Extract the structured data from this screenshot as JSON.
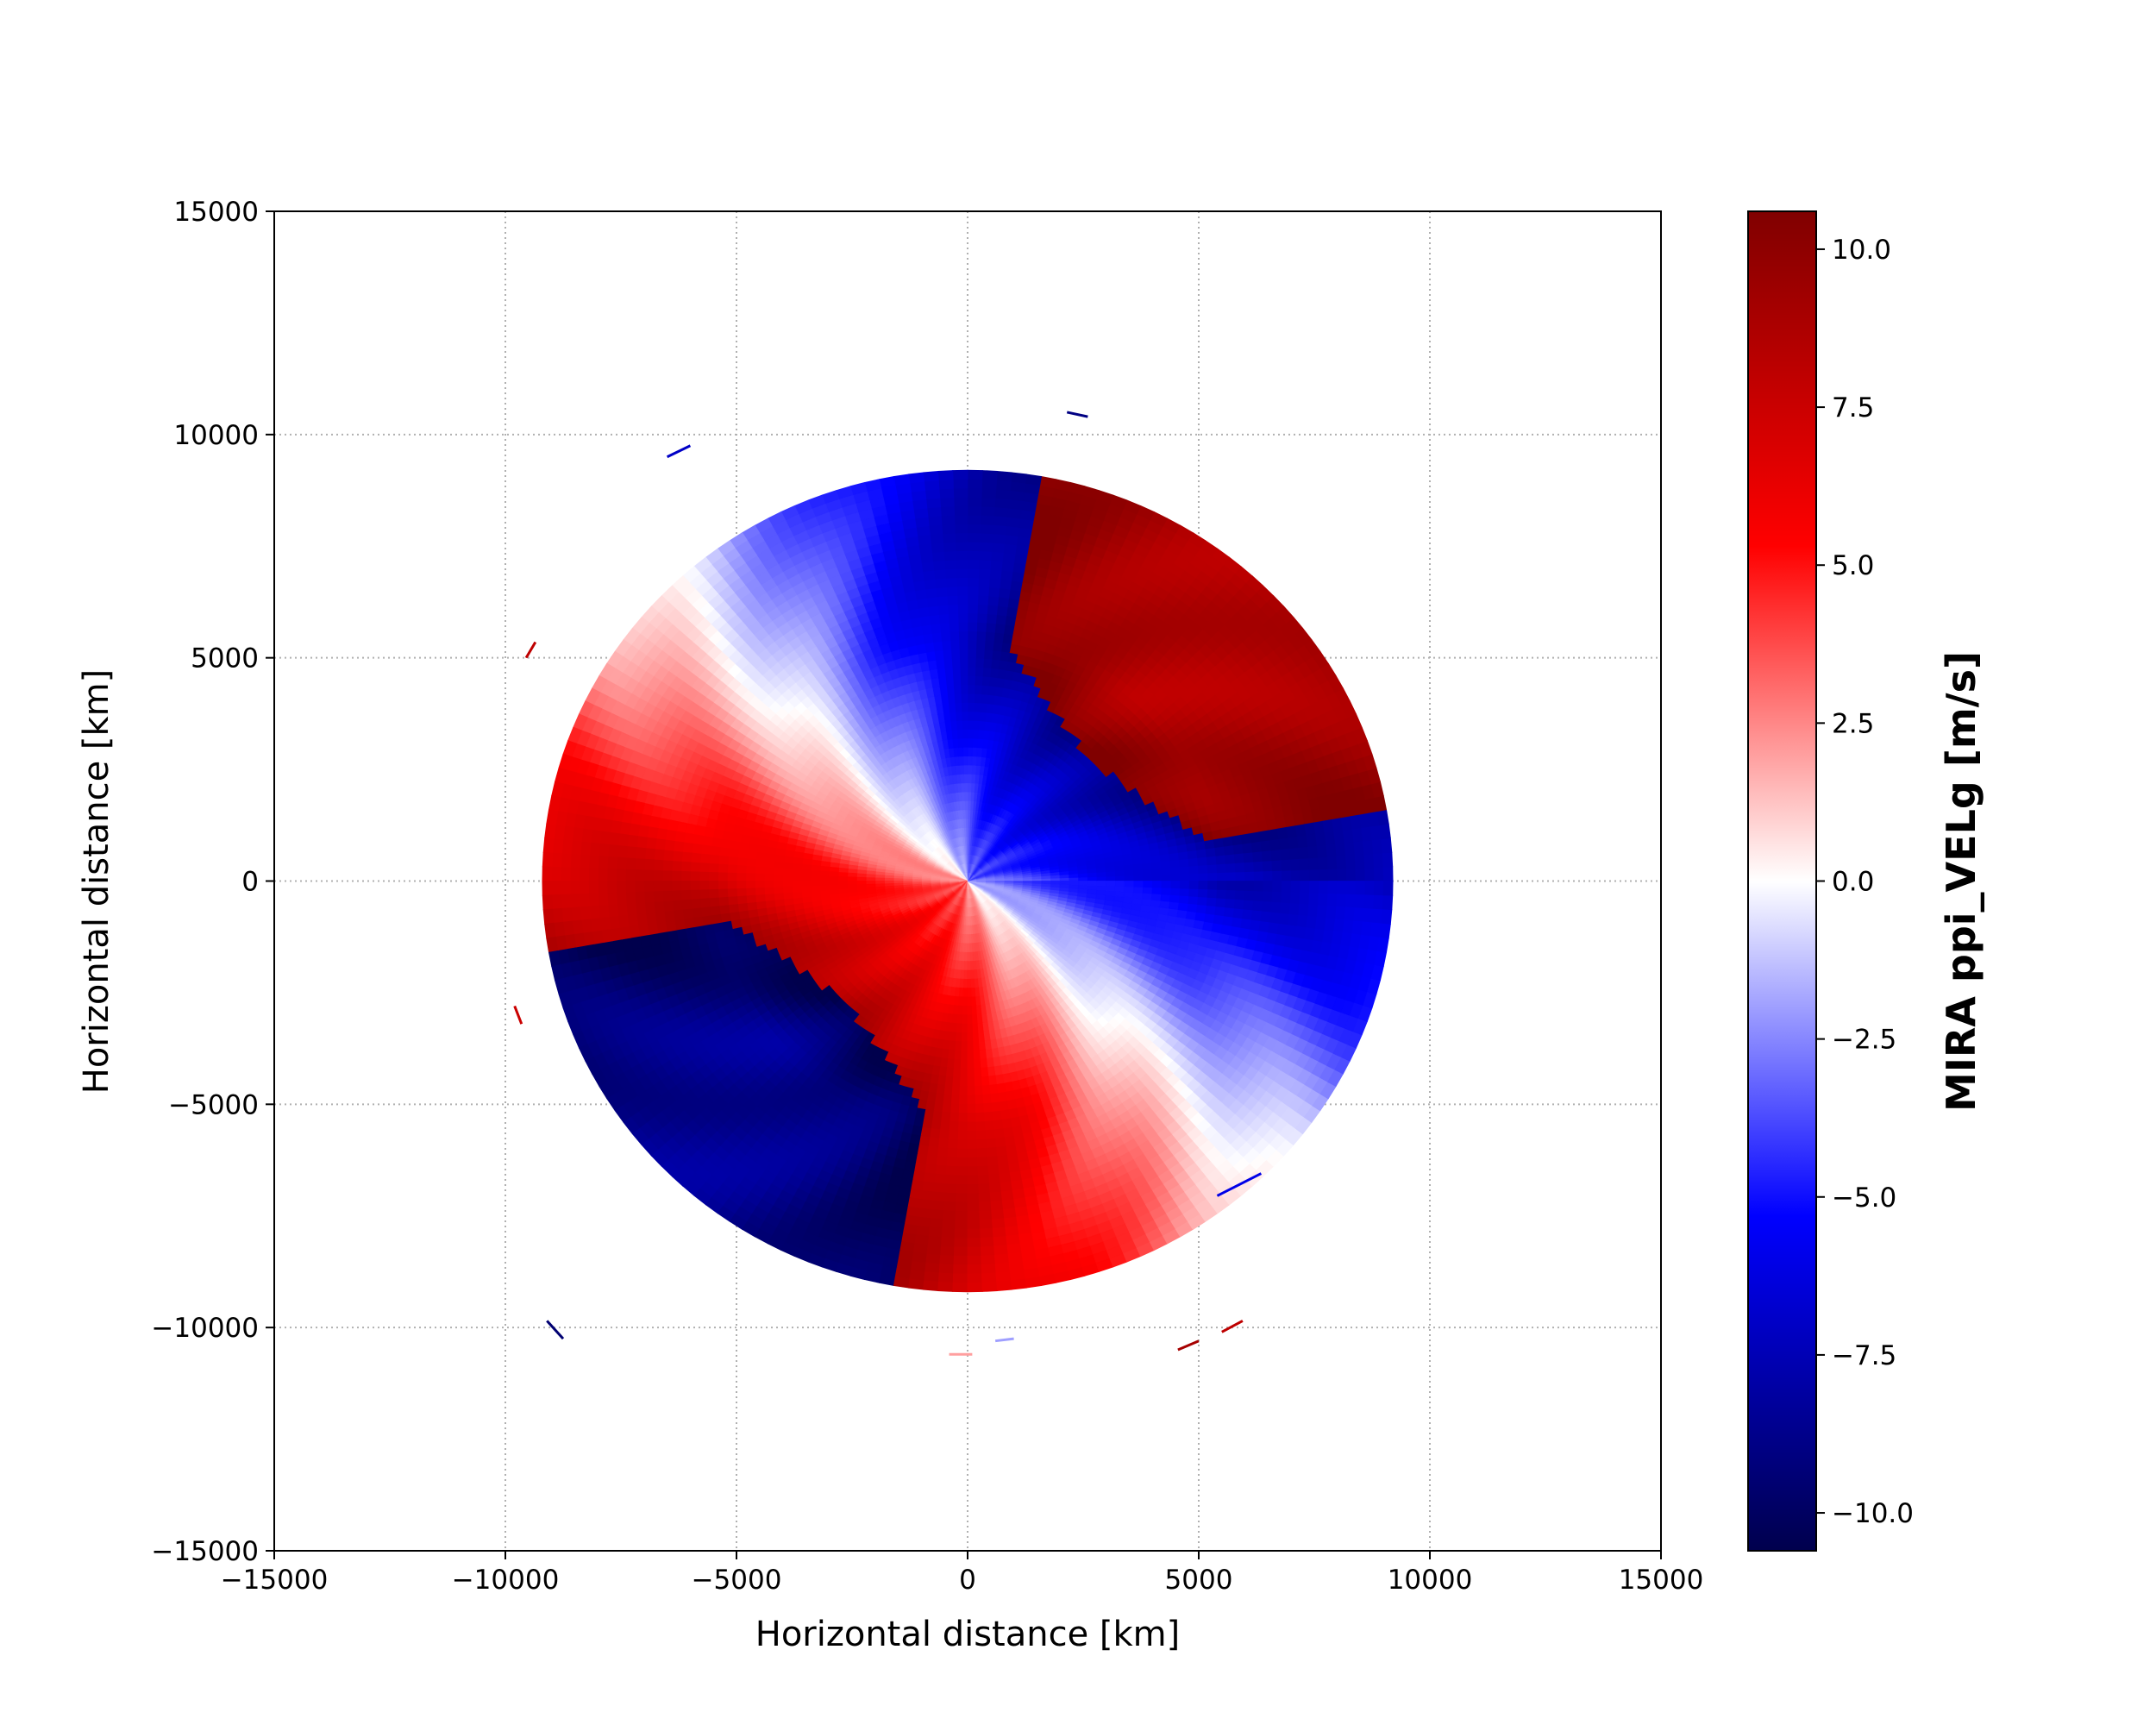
{
  "chart_data": {
    "type": "heatmap",
    "subtype": "radar-ppi",
    "xlabel": "Horizontal distance [km]",
    "ylabel": "Horizontal distance [km]",
    "xlim": [
      -15000,
      15000
    ],
    "ylim": [
      -15000,
      15000
    ],
    "xticks": [
      -15000,
      -10000,
      -5000,
      0,
      5000,
      10000,
      15000
    ],
    "yticks": [
      -15000,
      -10000,
      -5000,
      0,
      5000,
      10000,
      15000
    ],
    "xtick_labels": [
      "−15000",
      "−10000",
      "−5000",
      "0",
      "5000",
      "10000",
      "15000"
    ],
    "ytick_labels": [
      "−15000",
      "−10000",
      "−5000",
      "0",
      "5000",
      "10000",
      "15000"
    ],
    "grid": true,
    "max_range": 9200,
    "velocity_pattern": {
      "description_free": true,
      "peak_velocity": 10.5,
      "zero_line_azimuth_deg": 135,
      "folding_threshold": 8.5
    },
    "colorbar": {
      "label": "MIRA ppi_VELg [m/s]",
      "vmin": -10.6,
      "vmax": 10.6,
      "ticks": [
        10.0,
        7.5,
        5.0,
        2.5,
        0.0,
        -2.5,
        -5.0,
        -7.5,
        -10.0
      ],
      "tick_labels": [
        "10.0",
        "7.5",
        "5.0",
        "2.5",
        "0.0",
        "−2.5",
        "−5.0",
        "−7.5",
        "−10.0"
      ],
      "colormap": "seismic",
      "colors": [
        "#00004d",
        "#0000ff",
        "#ffffff",
        "#ff0000",
        "#800000"
      ]
    },
    "stray_echoes": [
      {
        "x1": -6500,
        "y1": 9500,
        "x2": -6000,
        "y2": 9750,
        "v": -7.0
      },
      {
        "x1": 2150,
        "y1": 10500,
        "x2": 2600,
        "y2": 10400,
        "v": -9.0
      },
      {
        "x1": -9550,
        "y1": 5000,
        "x2": -9350,
        "y2": 5350,
        "v": 8.0
      },
      {
        "x1": -9800,
        "y1": -2800,
        "x2": -9650,
        "y2": -3200,
        "v": 7.5
      },
      {
        "x1": -9100,
        "y1": -9850,
        "x2": -8750,
        "y2": -10250,
        "v": -9.5
      },
      {
        "x1": -400,
        "y1": -10600,
        "x2": 100,
        "y2": -10600,
        "v": 2.0
      },
      {
        "x1": 600,
        "y1": -10300,
        "x2": 1000,
        "y2": -10250,
        "v": -2.0
      },
      {
        "x1": 4550,
        "y1": -10500,
        "x2": 5000,
        "y2": -10300,
        "v": 9.0
      },
      {
        "x1": 5500,
        "y1": -10100,
        "x2": 5950,
        "y2": -9850,
        "v": 8.0
      },
      {
        "x1": 5400,
        "y1": -7050,
        "x2": 6350,
        "y2": -6550,
        "v": -6.0
      }
    ]
  }
}
